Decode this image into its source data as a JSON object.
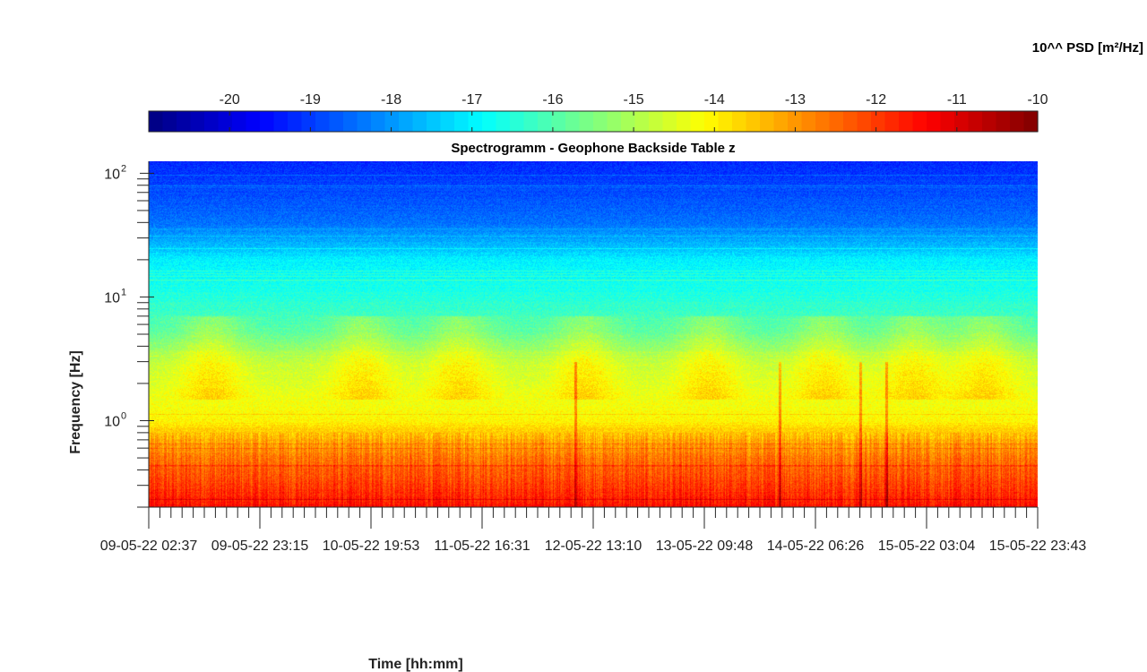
{
  "chart_data": {
    "type": "heatmap",
    "title": "Spectrogramm - Geophone Backside Table z",
    "xlabel": "Time [hh:mm]",
    "ylabel": "Frequency [Hz]",
    "y_scale": "log",
    "ylim": [
      0.2,
      125
    ],
    "y_ticks": [
      {
        "base": "10",
        "exp": "2"
      },
      {
        "base": "10",
        "exp": "1"
      },
      {
        "base": "10",
        "exp": "0"
      }
    ],
    "x_tick_labels": [
      "09-05-22 02:37",
      "09-05-22 23:15",
      "10-05-22 19:53",
      "11-05-22 16:31",
      "12-05-22 13:10",
      "13-05-22 09:48",
      "14-05-22 06:26",
      "15-05-22 03:04",
      "15-05-22 23:43"
    ],
    "colorbar": {
      "label": "10^^ PSD [m²/Hz]",
      "ticks": [
        "-20",
        "-19",
        "-18",
        "-17",
        "-16",
        "-15",
        "-14",
        "-13",
        "-12",
        "-11",
        "-10"
      ],
      "min": -21,
      "max": -10,
      "colormap": "jet",
      "location": "top"
    },
    "approx_log10_psd_profile": [
      {
        "frequency_hz": 0.2,
        "value": -11.5
      },
      {
        "frequency_hz": 0.3,
        "value": -12.0
      },
      {
        "frequency_hz": 0.5,
        "value": -12.6
      },
      {
        "frequency_hz": 0.7,
        "value": -13.2
      },
      {
        "frequency_hz": 1.0,
        "value": -14.0
      },
      {
        "frequency_hz": 1.5,
        "value": -14.3
      },
      {
        "frequency_hz": 3.0,
        "value": -14.8
      },
      {
        "frequency_hz": 5.0,
        "value": -15.8
      },
      {
        "frequency_hz": 10,
        "value": -16.5
      },
      {
        "frequency_hz": 20,
        "value": -17.0
      },
      {
        "frequency_hz": 25,
        "value": -17.5
      },
      {
        "frequency_hz": 40,
        "value": -18.4
      },
      {
        "frequency_hz": 70,
        "value": -18.8
      },
      {
        "frequency_hz": 125,
        "value": -19.2
      }
    ],
    "colors": {
      "axis": "#262626",
      "background": "#ffffff"
    }
  }
}
